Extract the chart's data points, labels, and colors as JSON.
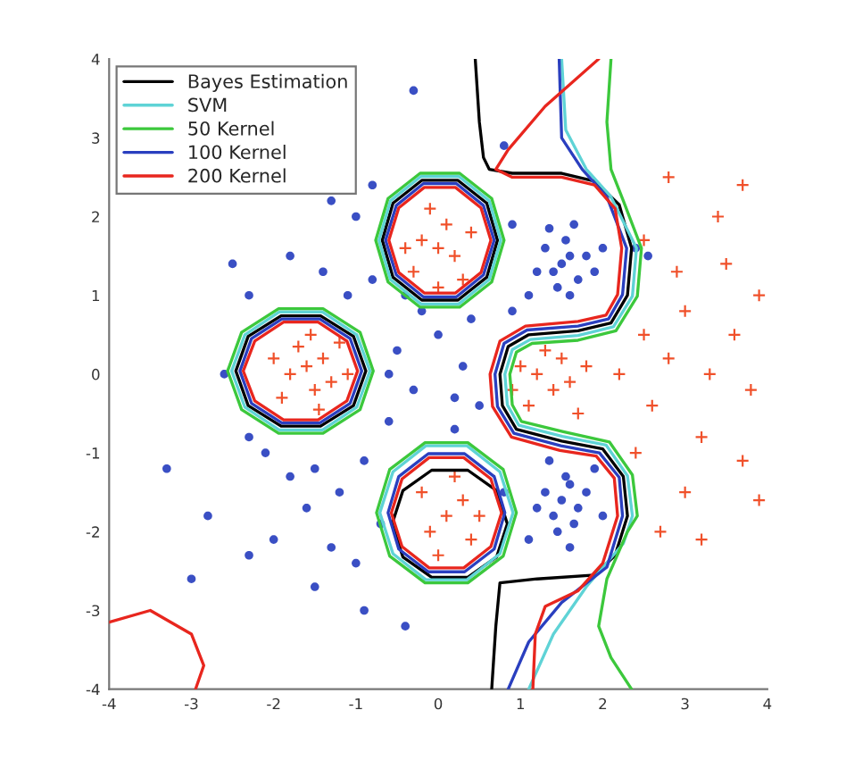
{
  "chart_data": {
    "type": "scatter",
    "xlim": [
      -4,
      4
    ],
    "ylim": [
      -4,
      4
    ],
    "xticks": [
      -4,
      -3,
      -2,
      -1,
      0,
      1,
      2,
      3,
      4
    ],
    "yticks": [
      -4,
      -3,
      -2,
      -1,
      0,
      1,
      2,
      3,
      4
    ],
    "legend": "top left",
    "series": [
      {
        "marker": "circle",
        "color": "#3a4fc4",
        "x": [
          1.5,
          1.6,
          1.4,
          1.7,
          1.55,
          1.3,
          1.8,
          1.45,
          1.65,
          1.2,
          1.9,
          1.6,
          1.35,
          2.0,
          1.1,
          1.5,
          1.6,
          1.4,
          1.7,
          1.55,
          1.3,
          1.8,
          1.45,
          1.65,
          1.2,
          1.9,
          1.6,
          1.35,
          2.0,
          1.1,
          -0.5,
          -0.3,
          0.0,
          0.3,
          -0.6,
          0.5,
          -0.2,
          0.4,
          0.2,
          -0.4,
          -0.8,
          -1.1,
          -1.4,
          -1.8,
          -2.3,
          -2.5,
          -1.0,
          -0.8,
          -1.3,
          -0.3,
          0.8,
          0.9,
          -2.1,
          -1.8,
          -1.5,
          -1.2,
          -0.9,
          -1.6,
          -2.0,
          -2.3,
          -1.3,
          -1.0,
          -1.5,
          -0.9,
          -2.8,
          -3.3,
          -3.0,
          -2.6,
          -2.3,
          -0.7,
          -0.4,
          0.8,
          0.9,
          0.2,
          -0.6,
          2.55,
          2.4
        ],
        "values": [
          1.4,
          1.5,
          1.3,
          1.2,
          1.7,
          1.6,
          1.5,
          1.1,
          1.9,
          1.3,
          1.3,
          1.0,
          1.85,
          1.6,
          1.0,
          -1.6,
          -1.4,
          -1.8,
          -1.7,
          -1.3,
          -1.5,
          -1.5,
          -2.0,
          -1.9,
          -1.7,
          -1.2,
          -2.2,
          -1.1,
          -1.8,
          -2.1,
          0.3,
          -0.2,
          0.5,
          0.1,
          -0.6,
          -0.4,
          0.8,
          0.7,
          -0.7,
          1.0,
          1.2,
          1.0,
          1.3,
          1.5,
          1.0,
          1.4,
          2.0,
          2.4,
          2.2,
          3.6,
          2.9,
          1.9,
          -1.0,
          -1.3,
          -1.2,
          -1.5,
          -1.1,
          -1.7,
          -2.1,
          -2.3,
          -2.2,
          -2.4,
          -2.7,
          -3.0,
          -1.8,
          -1.2,
          -2.6,
          0.0,
          -0.8,
          -1.9,
          -3.2,
          -1.5,
          0.8,
          -0.3,
          0.0,
          1.5,
          1.6
        ]
      },
      {
        "marker": "cross",
        "color": "#f0502a",
        "x": [
          -1.6,
          -1.4,
          -1.8,
          -1.5,
          -1.7,
          -1.3,
          -1.9,
          -1.2,
          -2.0,
          -1.55,
          -1.45,
          -1.1,
          0.0,
          0.2,
          -0.2,
          0.1,
          -0.3,
          0.3,
          0.4,
          -0.1,
          0.0,
          -0.4,
          0.1,
          0.3,
          -0.1,
          0.2,
          0.4,
          -0.2,
          0.0,
          0.5,
          1.2,
          1.4,
          1.0,
          1.3,
          1.6,
          1.1,
          1.5,
          1.8,
          0.9,
          1.7,
          2.5,
          2.8,
          3.0,
          2.6,
          3.3,
          3.6,
          3.2,
          2.9,
          3.5,
          3.8,
          2.4,
          3.0,
          3.9,
          2.7,
          3.4,
          3.7,
          2.8,
          3.9,
          3.2,
          2.2,
          3.7,
          2.5
        ],
        "values": [
          0.1,
          0.2,
          0.0,
          -0.2,
          0.35,
          -0.1,
          -0.3,
          0.4,
          0.2,
          0.5,
          -0.45,
          0.0,
          1.6,
          1.5,
          1.7,
          1.9,
          1.3,
          1.2,
          1.8,
          2.1,
          1.1,
          1.6,
          -1.8,
          -1.6,
          -2.0,
          -1.3,
          -2.1,
          -1.5,
          -2.3,
          -1.8,
          0.0,
          -0.2,
          0.1,
          0.3,
          -0.1,
          -0.4,
          0.2,
          0.1,
          -0.2,
          -0.5,
          0.5,
          0.2,
          0.8,
          -0.4,
          0.0,
          0.5,
          -0.8,
          1.3,
          1.4,
          -0.2,
          -1.0,
          -1.5,
          -1.6,
          -2.0,
          2.0,
          2.4,
          2.5,
          1.0,
          -2.1,
          0.0,
          -1.1,
          1.7
        ]
      },
      {
        "type": "line",
        "name": "Bayes Estimation",
        "color": "#000000",
        "x": [
          -0.88,
          -1.03,
          -1.43,
          -1.91,
          -2.31,
          -2.46,
          -2.31,
          -1.91,
          -1.43,
          -1.03,
          -0.88,
          -1.03,
          null,
          0.72,
          0.59,
          0.24,
          -0.2,
          -0.55,
          -0.68,
          -0.55,
          -0.2,
          0.24,
          0.59,
          0.72,
          0.59,
          null,
          0.84,
          0.71,
          0.36,
          -0.08,
          -0.43,
          -0.56,
          -0.43,
          -0.08,
          0.36,
          0.71,
          0.84,
          0.71,
          null,
          0.45,
          0.5,
          0.55,
          0.62,
          0.9,
          1.5,
          1.9,
          2.2,
          2.35,
          2.3,
          2.1,
          1.7,
          1.1,
          0.85,
          0.75,
          0.78,
          0.95,
          1.5,
          2.0,
          2.25,
          2.3,
          2.15,
          1.9,
          1.2,
          0.75,
          0.7,
          0.65
        ],
        "values": [
          0.04,
          0.48,
          0.74,
          0.74,
          0.48,
          0.04,
          -0.4,
          -0.66,
          -0.66,
          -0.4,
          0.04,
          0.48,
          null,
          1.7,
          2.17,
          2.46,
          2.46,
          2.17,
          1.7,
          1.23,
          0.94,
          0.94,
          1.23,
          1.7,
          2.17,
          null,
          -1.9,
          -1.48,
          -1.22,
          -1.22,
          -1.48,
          -1.9,
          -2.32,
          -2.58,
          -2.58,
          -2.32,
          -1.9,
          -1.48,
          null,
          4,
          3.2,
          2.75,
          2.6,
          2.55,
          2.55,
          2.45,
          2.15,
          1.6,
          1.0,
          0.65,
          0.55,
          0.5,
          0.35,
          0.0,
          -0.4,
          -0.7,
          -0.85,
          -0.95,
          -1.3,
          -1.8,
          -2.3,
          -2.55,
          -2.6,
          -2.65,
          -3.2,
          -4
        ]
      },
      {
        "type": "line",
        "name": "SVM",
        "color": "#5fd3d6",
        "x": [
          -0.83,
          -0.99,
          -1.41,
          -1.93,
          -2.35,
          -2.51,
          -2.35,
          -1.93,
          -1.41,
          -0.99,
          -0.83,
          -0.99,
          null,
          0.76,
          0.62,
          0.25,
          -0.21,
          -0.58,
          -0.72,
          -0.58,
          -0.21,
          0.25,
          0.62,
          0.76,
          0.62,
          null,
          0.91,
          0.75,
          0.35,
          -0.15,
          -0.55,
          -0.71,
          -0.55,
          -0.15,
          0.35,
          0.75,
          0.91,
          0.75,
          null,
          1.5,
          1.55,
          1.8,
          2.1,
          2.41,
          2.36,
          2.13,
          1.7,
          1.12,
          0.9,
          0.81,
          0.84,
          0.98,
          1.51,
          2.04,
          2.3,
          2.36,
          2.25,
          1.8,
          1.4,
          1.1
        ],
        "values": [
          0.04,
          0.5,
          0.79,
          0.79,
          0.5,
          0.04,
          -0.42,
          -0.71,
          -0.71,
          -0.42,
          0.04,
          0.5,
          null,
          1.7,
          2.2,
          2.51,
          2.51,
          2.2,
          1.7,
          1.2,
          0.89,
          0.89,
          1.2,
          1.7,
          2.2,
          null,
          -1.76,
          -1.24,
          -0.91,
          -0.91,
          -1.24,
          -1.76,
          -2.28,
          -2.61,
          -2.61,
          -2.28,
          -1.76,
          -1.24,
          null,
          4,
          3.1,
          2.6,
          2.25,
          1.6,
          0.99,
          0.6,
          0.49,
          0.44,
          0.31,
          0.0,
          -0.39,
          -0.65,
          -0.79,
          -0.9,
          -1.29,
          -1.8,
          -2.15,
          -2.7,
          -3.3,
          -4
        ]
      },
      {
        "type": "line",
        "name": "50 Kernel",
        "color": "#3cc83c",
        "x": [
          -0.79,
          -0.95,
          -1.4,
          -1.94,
          -2.39,
          -2.56,
          -2.39,
          -1.94,
          -1.4,
          -0.95,
          -0.79,
          -0.95,
          null,
          0.8,
          0.65,
          0.26,
          -0.22,
          -0.61,
          -0.76,
          -0.61,
          -0.22,
          0.26,
          0.65,
          0.8,
          0.65,
          null,
          0.95,
          0.79,
          0.36,
          -0.16,
          -0.59,
          -0.75,
          -0.59,
          -0.16,
          0.36,
          0.79,
          0.95,
          0.79,
          null,
          2.1,
          2.05,
          2.1,
          2.25,
          2.47,
          2.42,
          2.16,
          1.7,
          1.14,
          0.95,
          0.87,
          0.9,
          1.01,
          1.52,
          2.08,
          2.36,
          2.42,
          2.3,
          2.05,
          1.95,
          2.1,
          2.35
        ],
        "values": [
          0.04,
          0.53,
          0.83,
          0.83,
          0.53,
          0.04,
          -0.45,
          -0.75,
          -0.75,
          -0.45,
          0.04,
          0.53,
          null,
          1.7,
          2.23,
          2.55,
          2.55,
          2.23,
          1.7,
          1.17,
          0.85,
          0.85,
          1.17,
          1.7,
          2.23,
          null,
          -1.76,
          -1.21,
          -0.87,
          -0.87,
          -1.21,
          -1.76,
          -2.31,
          -2.65,
          -2.65,
          -2.31,
          -1.76,
          -1.21,
          null,
          4,
          3.2,
          2.6,
          2.2,
          1.6,
          0.99,
          0.55,
          0.43,
          0.39,
          0.28,
          0.0,
          -0.39,
          -0.6,
          -0.73,
          -0.86,
          -1.28,
          -1.8,
          -2.0,
          -2.6,
          -3.2,
          -3.6,
          -4
        ]
      },
      {
        "type": "line",
        "name": "100 Kernel",
        "color": "#2a3fbf",
        "x": [
          -0.93,
          -1.07,
          -1.44,
          -1.9,
          -2.27,
          -2.41,
          -2.27,
          -1.9,
          -1.44,
          -1.07,
          -0.93,
          -1.07,
          null,
          0.68,
          0.55,
          0.22,
          -0.18,
          -0.51,
          -0.64,
          -0.51,
          -0.18,
          0.22,
          0.55,
          0.68,
          0.55,
          null,
          0.81,
          0.68,
          0.32,
          -0.12,
          -0.48,
          -0.61,
          -0.48,
          -0.12,
          0.32,
          0.68,
          0.81,
          0.68,
          null,
          1.47,
          1.5,
          1.75,
          2.05,
          2.29,
          2.24,
          2.07,
          1.7,
          1.08,
          0.8,
          0.69,
          0.72,
          0.92,
          1.49,
          1.96,
          2.2,
          2.24,
          2.05,
          1.5,
          1.1,
          0.85
        ],
        "values": [
          0.04,
          0.45,
          0.7,
          0.7,
          0.45,
          0.04,
          -0.37,
          -0.62,
          -0.62,
          -0.37,
          0.04,
          0.45,
          null,
          1.7,
          2.14,
          2.42,
          2.42,
          2.14,
          1.7,
          1.26,
          0.98,
          0.98,
          1.26,
          1.7,
          2.14,
          null,
          -1.76,
          -1.3,
          -1.01,
          -1.01,
          -1.3,
          -1.76,
          -2.22,
          -2.51,
          -2.51,
          -2.22,
          -1.76,
          -1.3,
          null,
          4,
          3.0,
          2.6,
          2.25,
          1.6,
          1.01,
          0.7,
          0.61,
          0.56,
          0.39,
          0.0,
          -0.41,
          -0.75,
          -0.91,
          -1.0,
          -1.31,
          -1.8,
          -2.45,
          -2.9,
          -3.4,
          -4
        ]
      },
      {
        "type": "line",
        "name": "200 Kernel",
        "color": "#e8261e",
        "x": [
          -0.98,
          -1.11,
          -1.46,
          -1.88,
          -2.23,
          -2.37,
          -2.23,
          -1.88,
          -1.46,
          -1.11,
          -0.98,
          -1.11,
          null,
          0.64,
          0.52,
          0.21,
          -0.17,
          -0.48,
          -0.6,
          -0.48,
          -0.17,
          0.21,
          0.52,
          0.64,
          0.52,
          null,
          0.77,
          0.64,
          0.31,
          -0.11,
          -0.44,
          -0.57,
          -0.44,
          -0.11,
          0.31,
          0.64,
          0.77,
          0.64,
          null,
          1.95,
          1.3,
          0.85,
          0.7,
          0.9,
          1.5,
          1.9,
          2.15,
          2.23,
          2.18,
          2.04,
          1.7,
          1.06,
          0.75,
          0.63,
          0.66,
          0.89,
          1.48,
          1.92,
          2.14,
          2.18,
          2.0,
          1.7,
          1.3,
          1.18,
          1.15,
          null,
          -4,
          -3.5,
          -3.0,
          -2.85,
          -2.95
        ],
        "values": [
          0.04,
          0.42,
          0.66,
          0.66,
          0.42,
          0.04,
          -0.34,
          -0.58,
          -0.58,
          -0.34,
          0.04,
          0.42,
          null,
          1.7,
          2.11,
          2.37,
          2.37,
          2.11,
          1.7,
          1.29,
          1.03,
          1.03,
          1.29,
          1.7,
          2.11,
          null,
          -1.76,
          -1.33,
          -1.06,
          -1.06,
          -1.33,
          -1.76,
          -2.19,
          -2.46,
          -2.46,
          -2.19,
          -1.76,
          -1.33,
          null,
          4,
          3.4,
          2.85,
          2.6,
          2.5,
          2.5,
          2.4,
          2.1,
          1.6,
          1.01,
          0.75,
          0.67,
          0.61,
          0.42,
          0.0,
          -0.41,
          -0.8,
          -0.97,
          -1.04,
          -1.32,
          -1.8,
          -2.4,
          -2.75,
          -2.95,
          -3.3,
          -4,
          null,
          -3.15,
          -3.0,
          -3.3,
          -3.7,
          -4.0
        ]
      }
    ]
  }
}
